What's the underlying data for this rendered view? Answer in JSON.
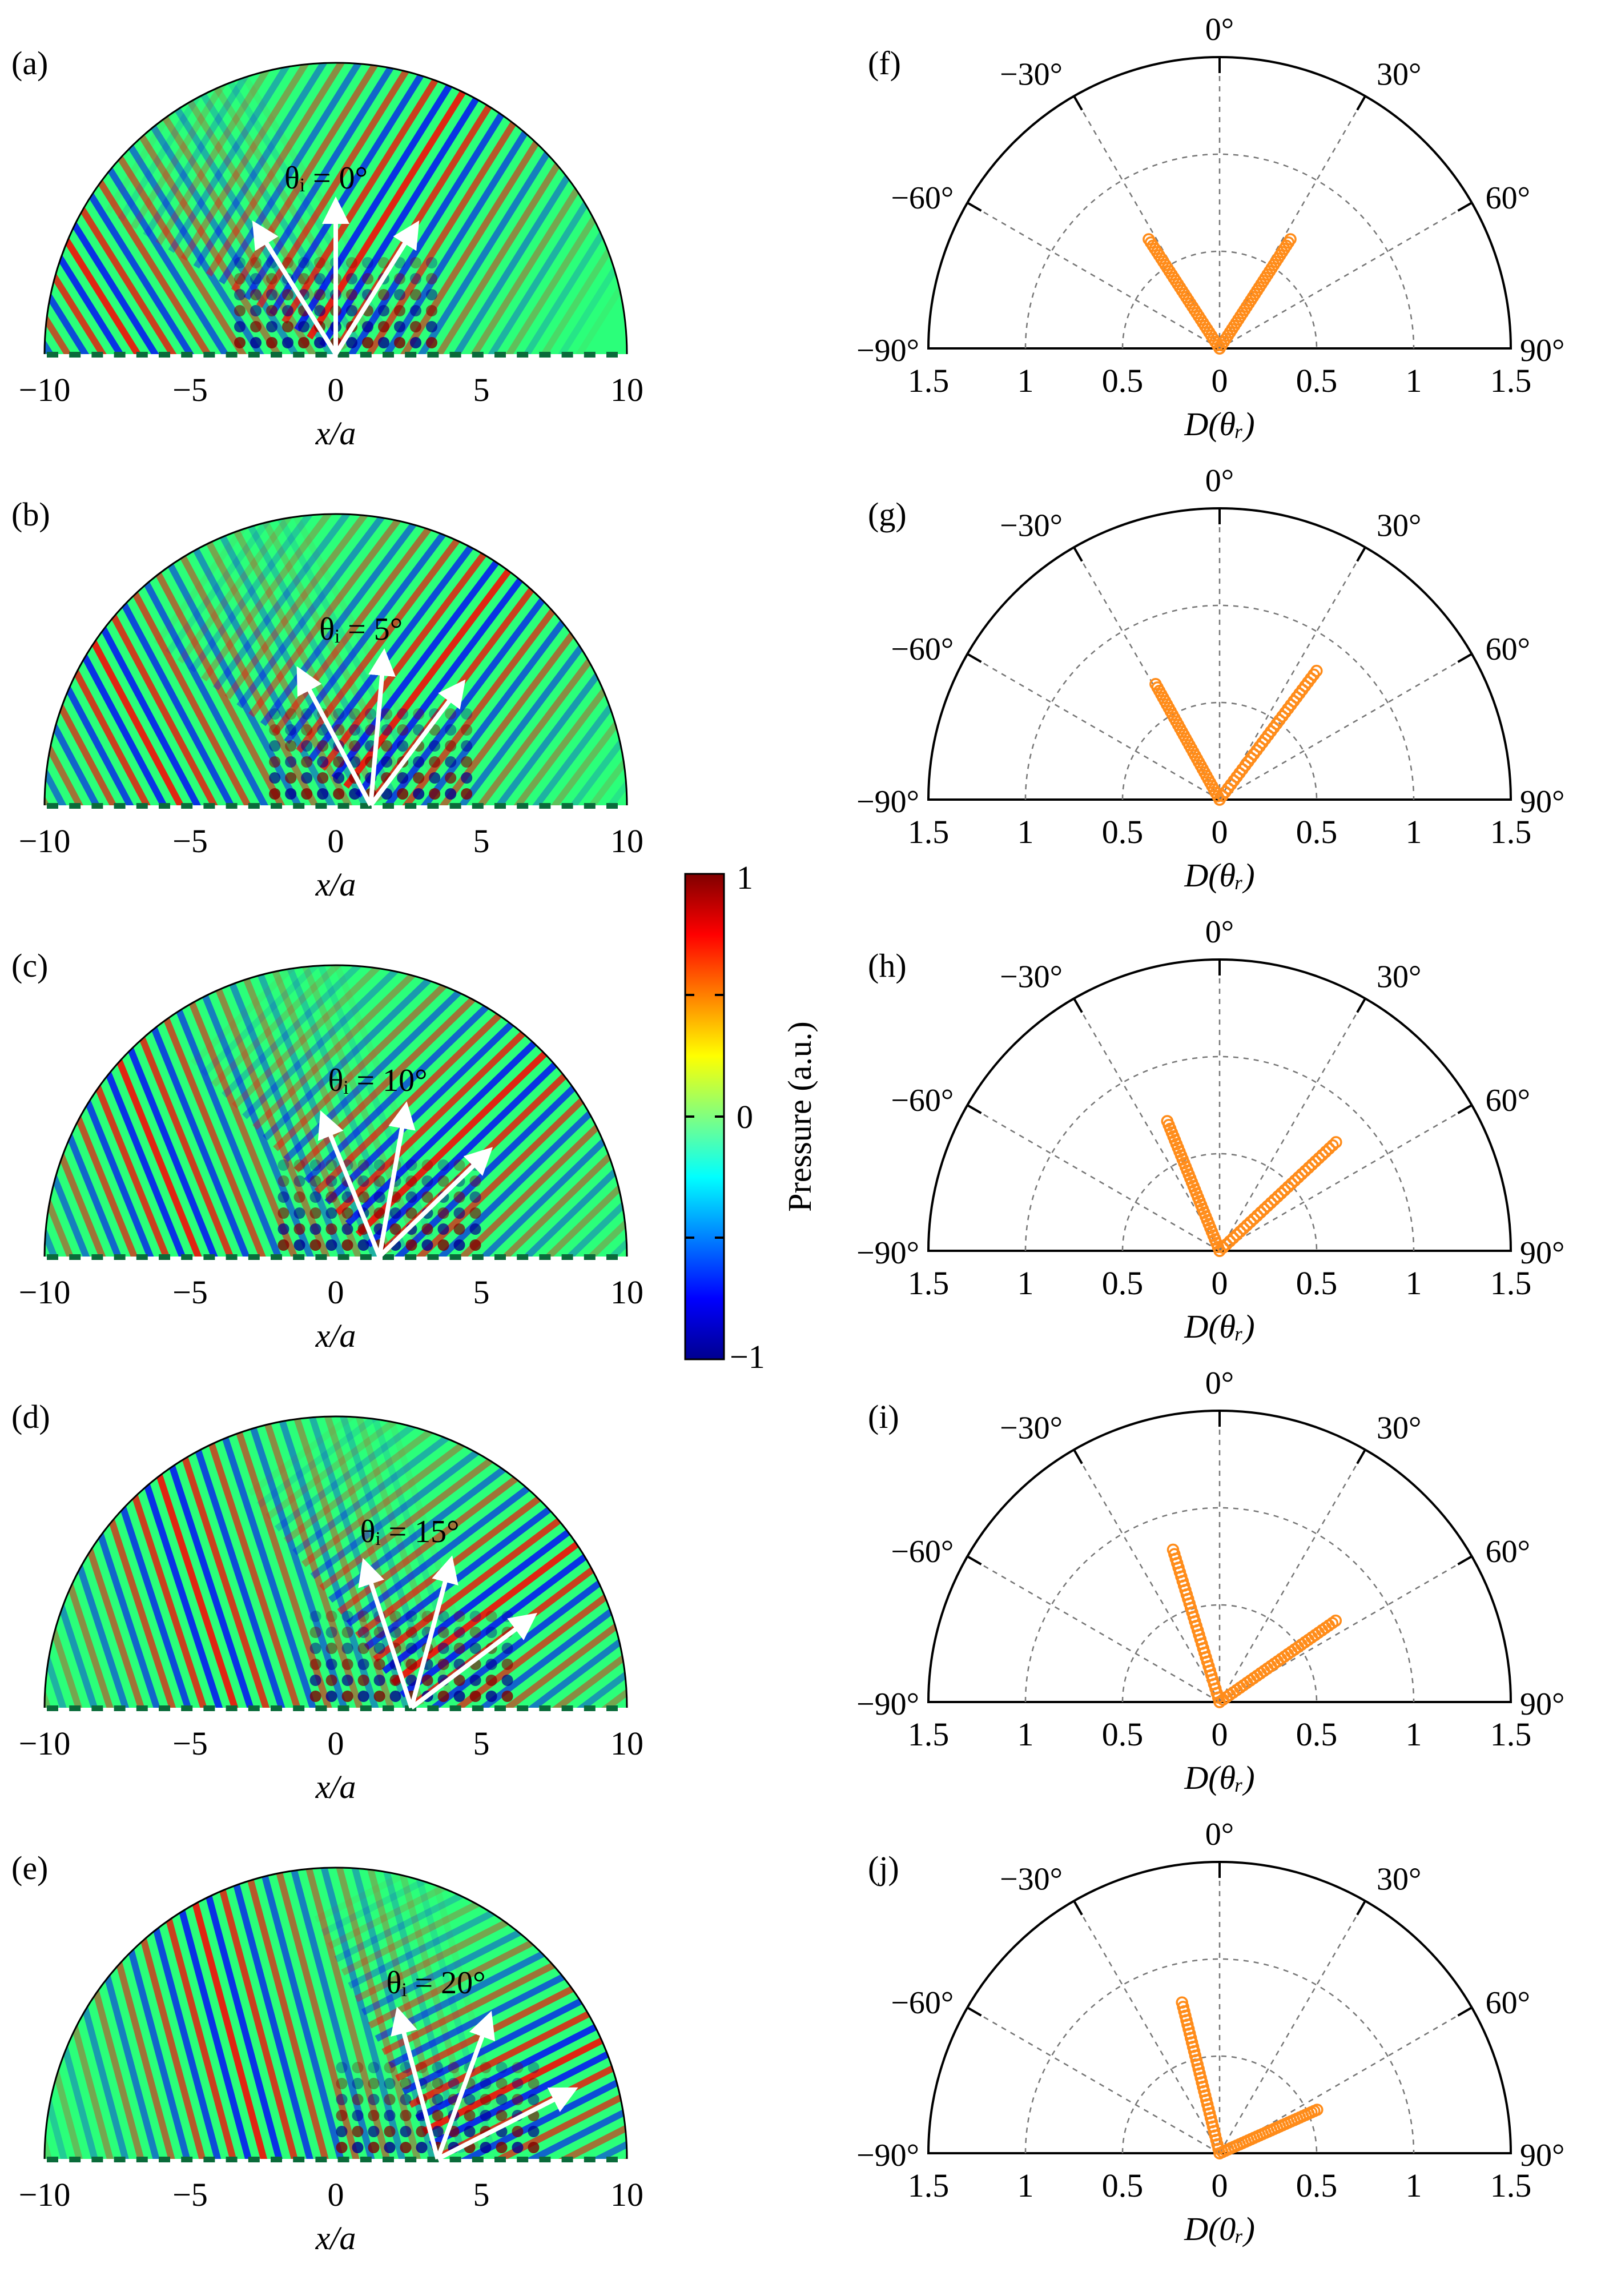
{
  "colorbar": {
    "label": "Pressure (a.u.)",
    "ticks": [
      "1",
      "0",
      "−1"
    ],
    "colors": [
      "#00008f",
      "#0000ff",
      "#0080ff",
      "#00ffff",
      "#80ff80",
      "#ffff00",
      "#ff8000",
      "#ff0000",
      "#800000"
    ]
  },
  "field_maps": [
    {
      "panel": "(a)",
      "theta_label": "θᵢ = 0°",
      "incident_deg": 0,
      "source_x": 0,
      "refl_deg": [
        -32,
        32
      ]
    },
    {
      "panel": "(b)",
      "theta_label": "θᵢ = 5°",
      "incident_deg": 5,
      "source_x": 1.2,
      "refl_deg": [
        -28,
        37
      ]
    },
    {
      "panel": "(c)",
      "theta_label": "θᵢ = 10°",
      "incident_deg": 10,
      "source_x": 1.5,
      "refl_deg": [
        -22,
        46
      ]
    },
    {
      "panel": "(d)",
      "theta_label": "θᵢ = 15°",
      "incident_deg": 15,
      "source_x": 2.6,
      "refl_deg": [
        -18,
        53
      ]
    },
    {
      "panel": "(e)",
      "theta_label": "θᵢ = 20°",
      "incident_deg": 20,
      "source_x": 3.5,
      "refl_deg": [
        -15,
        63
      ]
    }
  ],
  "field_axis": {
    "xlabel": "x/a",
    "xticks": [
      -10,
      -5,
      0,
      5,
      10
    ],
    "xlim": [
      -10,
      10
    ]
  },
  "chart_data": [
    {
      "type": "scatter",
      "panel": "(f)",
      "xlabel": "D(θᵣ)",
      "lobes": [
        {
          "angle_deg": -33,
          "max_r": 0.67
        },
        {
          "angle_deg": 33,
          "max_r": 0.67
        }
      ]
    },
    {
      "type": "scatter",
      "panel": "(g)",
      "xlabel": "D(θᵣ)",
      "lobes": [
        {
          "angle_deg": -29,
          "max_r": 0.68
        },
        {
          "angle_deg": 37,
          "max_r": 0.83
        }
      ]
    },
    {
      "type": "scatter",
      "panel": "(h)",
      "xlabel": "D(θᵣ)",
      "lobes": [
        {
          "angle_deg": -22,
          "max_r": 0.72
        },
        {
          "angle_deg": 47,
          "max_r": 0.82
        }
      ]
    },
    {
      "type": "scatter",
      "panel": "(i)",
      "xlabel": "D(θᵣ)",
      "lobes": [
        {
          "angle_deg": -17,
          "max_r": 0.82
        },
        {
          "angle_deg": 55,
          "max_r": 0.73
        }
      ]
    },
    {
      "type": "scatter",
      "panel": "(j)",
      "xlabel": "D(0ᵣ)",
      "lobes": [
        {
          "angle_deg": -14,
          "max_r": 0.8
        },
        {
          "angle_deg": 66,
          "max_r": 0.55
        }
      ]
    }
  ],
  "polar_axis": {
    "angle_labels": [
      "0°",
      "−30°",
      "30°",
      "−60°",
      "60°",
      "−90°",
      "90°"
    ],
    "radial_ticks": [
      "1.5",
      "1",
      "0.5",
      "0",
      "0.5",
      "1",
      "1.5"
    ],
    "rmax": 1.5,
    "rings": [
      0.5,
      1.0,
      1.5
    ],
    "marker_color": "#ff8c1a"
  }
}
